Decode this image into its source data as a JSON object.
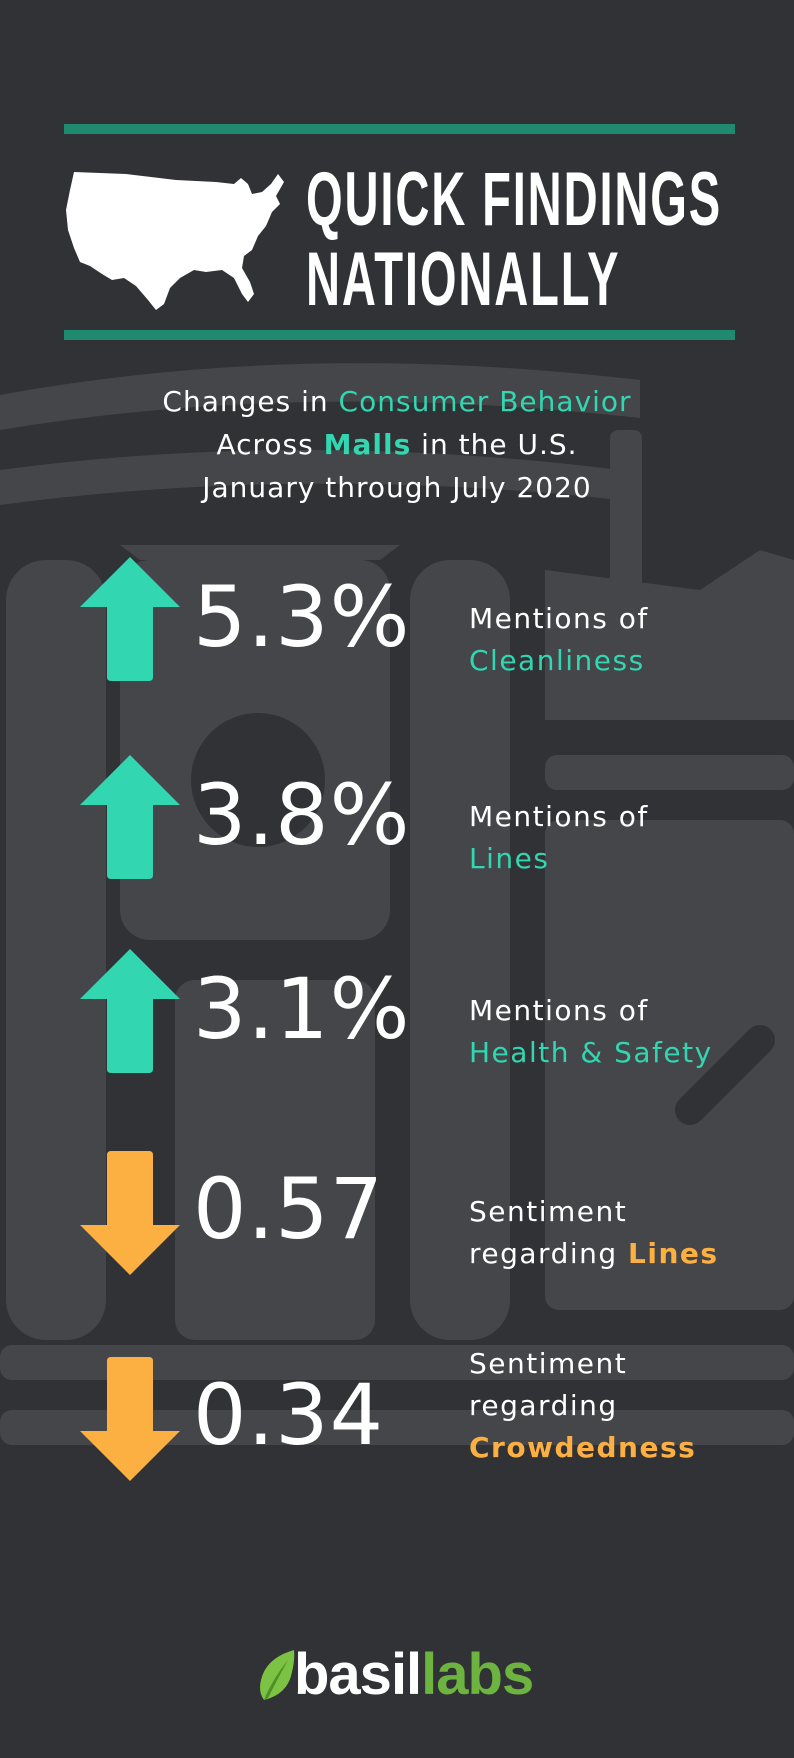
{
  "header": {
    "title_line1": "QUICK FINDINGS",
    "title_line2": "NATIONALLY",
    "map_icon": "usa-map-icon"
  },
  "subtitle": {
    "line1_pre": "Changes in ",
    "line1_hl": "Consumer Behavior",
    "line2_pre": "Across ",
    "line2_hl": "Malls",
    "line2_post": " in the U.S.",
    "line3": "January through July 2020"
  },
  "findings": [
    {
      "direction": "up",
      "value": "5.3%",
      "label_line1": "Mentions of",
      "label_hl": "Cleanliness"
    },
    {
      "direction": "up",
      "value": "3.8%",
      "label_line1": "Mentions of",
      "label_hl": "Lines"
    },
    {
      "direction": "up",
      "value": "3.1%",
      "label_line1": "Mentions of",
      "label_hl": "Health & Safety"
    },
    {
      "direction": "down",
      "value": "0.57",
      "label_line1": "Sentiment",
      "label_line2_pre": "regarding ",
      "label_hl": "Lines"
    },
    {
      "direction": "down",
      "value": "0.34",
      "label_line1": "Sentiment",
      "label_line2_pre": "regarding",
      "label_hl": "Crowdedness"
    }
  ],
  "colors": {
    "background": "#313235",
    "rule": "#1f8a70",
    "up": "#32d6b0",
    "down": "#fdb042",
    "brand_green": "#6cb33f"
  },
  "logo": {
    "part1": "basil",
    "part2": "labs",
    "leaf_icon": "leaf-icon"
  }
}
